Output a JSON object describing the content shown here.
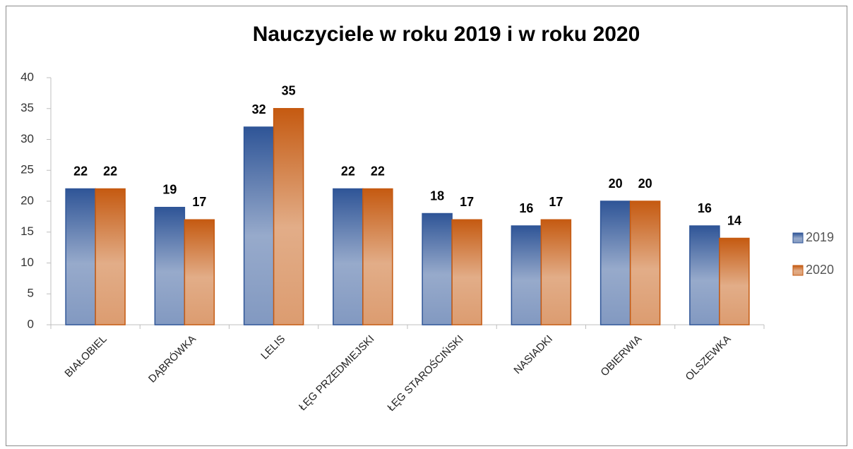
{
  "chart_data": {
    "type": "bar",
    "title": "Nauczyciele  w roku 2019 i w roku 2020",
    "categories": [
      "BIAŁOBIEL",
      "DĄBRÓWKA",
      "LELIS",
      "ŁĘG PRZEDMIEJSKI",
      "ŁĘG STAROŚCIŃSKI",
      "NASIADKI",
      "OBIERWIA",
      "OLSZEWKA"
    ],
    "series": [
      {
        "name": "2019",
        "color": "#2f5597",
        "values": [
          22,
          19,
          32,
          22,
          18,
          16,
          20,
          16
        ]
      },
      {
        "name": "2020",
        "color": "#c55a11",
        "values": [
          22,
          17,
          35,
          22,
          17,
          17,
          20,
          14
        ]
      }
    ],
    "ylim": [
      0,
      40
    ],
    "yticks": [
      0,
      5,
      10,
      15,
      20,
      25,
      30,
      35,
      40
    ],
    "grid": false,
    "legend": "right"
  }
}
